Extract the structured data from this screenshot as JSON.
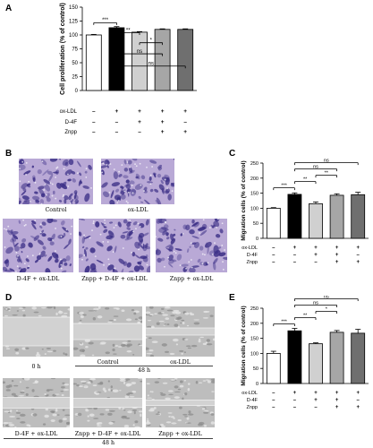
{
  "panels": {
    "A": "A",
    "B": "B",
    "C": "C",
    "D": "D",
    "E": "E"
  },
  "colors": {
    "bar_fills": [
      "#ffffff",
      "#000000",
      "#d0d0d0",
      "#a6a6a6",
      "#6f6f6f"
    ],
    "micrograph_base": "#b9a9d6",
    "micrograph_cell": "#3b2f86",
    "scratch_base": "#bdbdbd"
  },
  "chart_data": [
    {
      "panel": "A",
      "type": "bar",
      "ylabel": "Cell proliferation (% of control)",
      "ylim": [
        0,
        150
      ],
      "yticks": [
        0,
        25,
        50,
        75,
        100,
        125,
        150
      ],
      "values": [
        100,
        113,
        105,
        110,
        110
      ],
      "errors": [
        1,
        2,
        1,
        1,
        1
      ],
      "treatment_rows": [
        {
          "name": "ox-LDL",
          "marks": [
            "–",
            "+",
            "+",
            "+",
            "+"
          ]
        },
        {
          "name": "D-4F",
          "marks": [
            "–",
            "–",
            "+",
            "+",
            "–"
          ]
        },
        {
          "name": "Znpp",
          "marks": [
            "–",
            "–",
            "–",
            "+",
            "+"
          ]
        }
      ],
      "significance": [
        {
          "from": 0,
          "to": 1,
          "label": "***"
        },
        {
          "from": 1,
          "to": 2,
          "label": "**"
        },
        {
          "from": 2,
          "to": 3,
          "label": "*"
        },
        {
          "from": 1,
          "to": 3,
          "label": "ns"
        },
        {
          "from": 1,
          "to": 4,
          "label": "ns"
        }
      ]
    },
    {
      "panel": "C",
      "type": "bar",
      "ylabel": "Migration cells (% of control)",
      "ylim": [
        0,
        250
      ],
      "yticks": [
        0,
        50,
        100,
        150,
        200,
        250
      ],
      "values": [
        100,
        146,
        115,
        143,
        145
      ],
      "errors": [
        2,
        5,
        6,
        5,
        8
      ],
      "treatment_rows": [
        {
          "name": "ox-LDL",
          "marks": [
            "–",
            "+",
            "+",
            "+",
            "+"
          ]
        },
        {
          "name": "D-4F",
          "marks": [
            "–",
            "–",
            "+",
            "+",
            "–"
          ]
        },
        {
          "name": "Znpp",
          "marks": [
            "–",
            "–",
            "–",
            "+",
            "+"
          ]
        }
      ],
      "significance": [
        {
          "from": 0,
          "to": 1,
          "label": "***"
        },
        {
          "from": 1,
          "to": 2,
          "label": "**"
        },
        {
          "from": 2,
          "to": 3,
          "label": "**"
        },
        {
          "from": 1,
          "to": 3,
          "label": "ns"
        },
        {
          "from": 1,
          "to": 4,
          "label": "ns"
        }
      ]
    },
    {
      "panel": "E",
      "type": "bar",
      "ylabel": "Migration cells (% of control)",
      "ylim": [
        0,
        250
      ],
      "yticks": [
        0,
        50,
        100,
        150,
        200,
        250
      ],
      "values": [
        100,
        175,
        132,
        170,
        167
      ],
      "errors": [
        7,
        8,
        3,
        6,
        13
      ],
      "treatment_rows": [
        {
          "name": "ox-LDL",
          "marks": [
            "–",
            "+",
            "+",
            "+",
            "+"
          ]
        },
        {
          "name": "D-4F",
          "marks": [
            "–",
            "–",
            "+",
            "+",
            "–"
          ]
        },
        {
          "name": "Znpp",
          "marks": [
            "–",
            "–",
            "–",
            "+",
            "+"
          ]
        }
      ],
      "significance": [
        {
          "from": 0,
          "to": 1,
          "label": "***"
        },
        {
          "from": 1,
          "to": 2,
          "label": "**"
        },
        {
          "from": 2,
          "to": 3,
          "label": "*"
        },
        {
          "from": 1,
          "to": 3,
          "label": "ns"
        },
        {
          "from": 1,
          "to": 4,
          "label": "ns"
        }
      ]
    }
  ],
  "panelB": {
    "captions": [
      "Control",
      "ox-LDL",
      "D-4F + ox-LDL",
      "Znpp + D-4F + ox-LDL",
      "Znpp + ox-LDL"
    ]
  },
  "panelD": {
    "captions": [
      "0 h",
      "Control",
      "ox-LDL",
      "D-4F + ox-LDL",
      "Znpp + D-4F + ox-LDL",
      "Znpp + ox-LDL"
    ],
    "time_label_top": "48 h",
    "time_label_bottom": "48 h"
  }
}
